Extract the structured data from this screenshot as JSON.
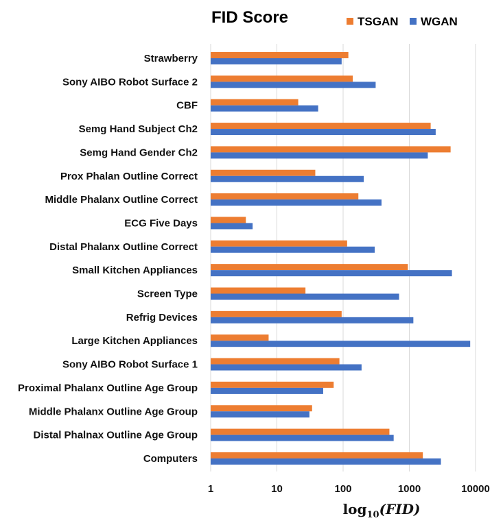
{
  "chart_data": {
    "type": "bar",
    "orientation": "horizontal",
    "title": "FID Score",
    "xlabel": "log10(FID)",
    "xscale": "log",
    "xlim": [
      1,
      10000
    ],
    "xticks": [
      "1",
      "10",
      "100",
      "1000",
      "10000"
    ],
    "grid": "vertical",
    "legend": "top-right",
    "categories": [
      "Strawberry",
      "Sony AIBO Robot Surface 2",
      "CBF",
      "Semg Hand Subject Ch2",
      "Semg Hand Gender Ch2",
      "Prox Phalan Outline Correct",
      "Middle Phalanx Outline Correct",
      "ECG Five Days",
      "Distal Phalanx Outline Correct",
      "Small Kitchen Appliances",
      "Screen Type",
      "Refrig Devices",
      "Large Kitchen Appliances",
      "Sony AIBO Robot Surface 1",
      "Proximal Phalanx Outline Age Group",
      "Middle Phalanx Outline Age Group",
      "Distal Phalnax Outline Age Group",
      "Computers"
    ],
    "series": [
      {
        "name": "TSGAN",
        "color": "#ED7D31",
        "values": [
          120,
          140,
          21,
          2100,
          4200,
          38,
          170,
          3.4,
          115,
          950,
          27,
          95,
          7.5,
          88,
          72,
          34,
          500,
          1600
        ]
      },
      {
        "name": "WGAN",
        "color": "#4472C4",
        "values": [
          95,
          310,
          42,
          2500,
          1900,
          205,
          380,
          4.3,
          300,
          4400,
          700,
          1150,
          8300,
          190,
          50,
          31,
          580,
          3000
        ]
      }
    ]
  }
}
